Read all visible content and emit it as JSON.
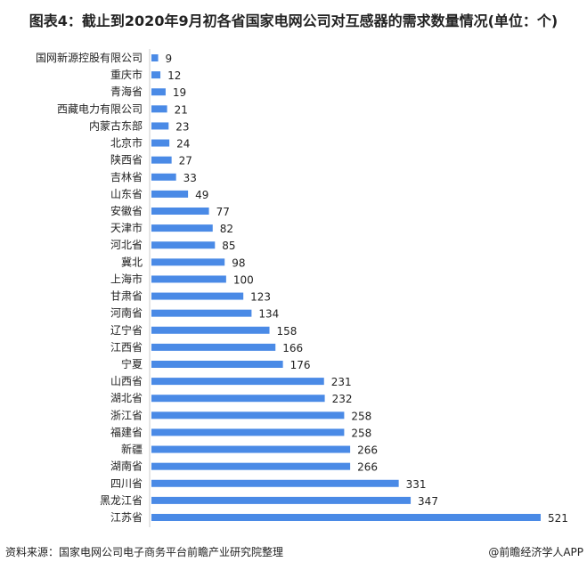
{
  "chart_data": {
    "type": "bar",
    "orientation": "horizontal",
    "title": "图表4：截止到2020年9月初各省国家电网公司对互感器的需求数量情况(单位：个)",
    "categories": [
      "国网新源控股有限公司",
      "重庆市",
      "青海省",
      "西藏电力有限公司",
      "内蒙古东部",
      "北京市",
      "陕西省",
      "吉林省",
      "山东省",
      "安徽省",
      "天津市",
      "河北省",
      "冀北",
      "上海市",
      "甘肃省",
      "河南省",
      "辽宁省",
      "江西省",
      "宁夏",
      "山西省",
      "湖北省",
      "浙江省",
      "福建省",
      "新疆",
      "湖南省",
      "四川省",
      "黑龙江省",
      "江苏省"
    ],
    "values": [
      9,
      12,
      19,
      21,
      23,
      24,
      27,
      33,
      49,
      77,
      82,
      85,
      98,
      100,
      123,
      134,
      158,
      166,
      176,
      231,
      232,
      258,
      258,
      266,
      266,
      331,
      347,
      521
    ],
    "bar_color": "#4a8ae6",
    "data_labels": true,
    "grid": false,
    "xlim": [
      0,
      521
    ]
  },
  "footer": {
    "source": "资料来源：国家电网公司电子商务平台前瞻产业研究院整理",
    "credit": "@前瞻经济学人APP"
  }
}
